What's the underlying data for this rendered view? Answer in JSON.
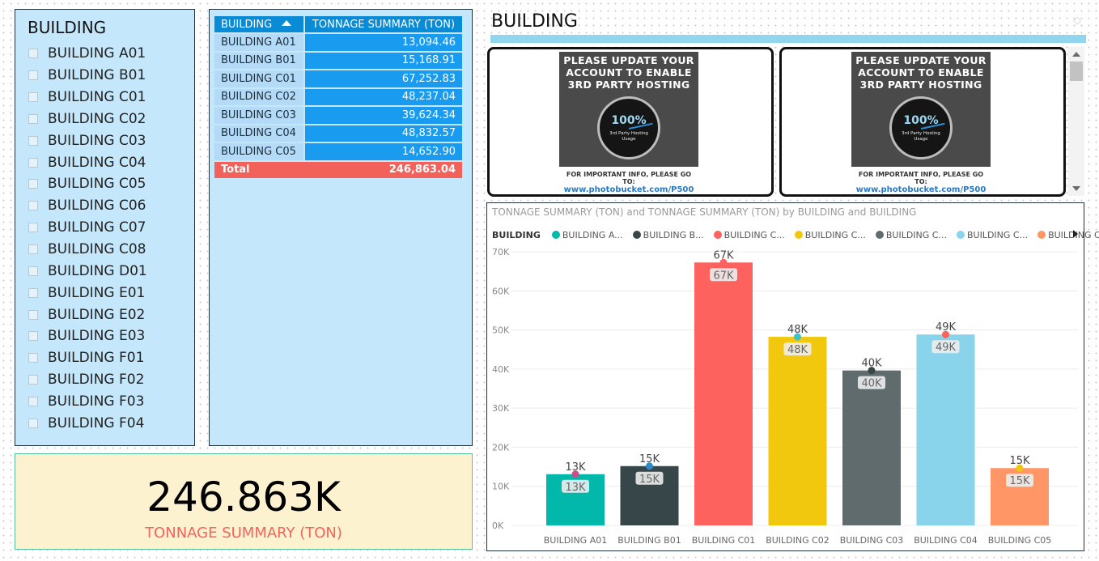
{
  "slicer": {
    "title": "BUILDING",
    "items": [
      "BUILDING A01",
      "BUILDING B01",
      "BUILDING C01",
      "BUILDING C02",
      "BUILDING C03",
      "BUILDING C04",
      "BUILDING C05",
      "BUILDING C06",
      "BUILDING C07",
      "BUILDING C08",
      "BUILDING D01",
      "BUILDING E01",
      "BUILDING E02",
      "BUILDING E03",
      "BUILDING F01",
      "BUILDING F02",
      "BUILDING F03",
      "BUILDING F04"
    ]
  },
  "table": {
    "headers": [
      "BUILDING",
      "TONNAGE SUMMARY (TON)"
    ],
    "rows": [
      {
        "building": "BUILDING A01",
        "value": "13,094.46"
      },
      {
        "building": "BUILDING B01",
        "value": "15,168.91"
      },
      {
        "building": "BUILDING C01",
        "value": "67,252.83"
      },
      {
        "building": "BUILDING C02",
        "value": "48,237.04"
      },
      {
        "building": "BUILDING C03",
        "value": "39,624.34"
      },
      {
        "building": "BUILDING C04",
        "value": "48,832.57"
      },
      {
        "building": "BUILDING C05",
        "value": "14,652.90"
      }
    ],
    "total_label": "Total",
    "total_value": "246,863.04"
  },
  "card": {
    "value": "246.863K",
    "label": "TONNAGE SUMMARY (TON)"
  },
  "header": {
    "title": "BUILDING"
  },
  "image_tile": {
    "text": "PLEASE UPDATE YOUR\nACCOUNT TO ENABLE\n3RD PARTY HOSTING",
    "gauge_value": "100%",
    "gauge_label": "3rd Party Hosting\nUsage",
    "footer_line1": "FOR IMPORTANT INFO, PLEASE GO TO:",
    "footer_line2": "www.photobucket.com/P500"
  },
  "chart_data": {
    "type": "bar",
    "title": "TONNAGE SUMMARY (TON) and TONNAGE SUMMARY (TON) by BUILDING and BUILDING",
    "legend_title": "BUILDING",
    "legend_labels": [
      "BUILDING A...",
      "BUILDING B...",
      "BUILDING C...",
      "BUILDING C...",
      "BUILDING C...",
      "BUILDING C...",
      "BUILDING C..."
    ],
    "categories": [
      "BUILDING A01",
      "BUILDING B01",
      "BUILDING C01",
      "BUILDING C02",
      "BUILDING C03",
      "BUILDING C04",
      "BUILDING C05"
    ],
    "values": [
      13094.46,
      15168.91,
      67252.83,
      48237.04,
      39624.34,
      48832.57,
      14652.9
    ],
    "data_labels": [
      "13K",
      "15K",
      "67K",
      "48K",
      "40K",
      "49K",
      "15K"
    ],
    "colors": [
      "#01b8aa",
      "#374649",
      "#fd625e",
      "#f2c80f",
      "#5f6b6d",
      "#8ad4eb",
      "#fe9666"
    ],
    "marker_colors": [
      "#c84f8a",
      "#2d8bc9",
      "#fd625e",
      "#3fc1c9",
      "#374649",
      "#fd625e",
      "#f2c80f"
    ],
    "ylim": [
      0,
      70000
    ],
    "yticks": [
      0,
      10000,
      20000,
      30000,
      40000,
      50000,
      60000,
      70000
    ],
    "ytick_labels": [
      "0K",
      "10K",
      "20K",
      "30K",
      "40K",
      "50K",
      "60K",
      "70K"
    ],
    "grid": true,
    "legend_position": "top-left"
  }
}
